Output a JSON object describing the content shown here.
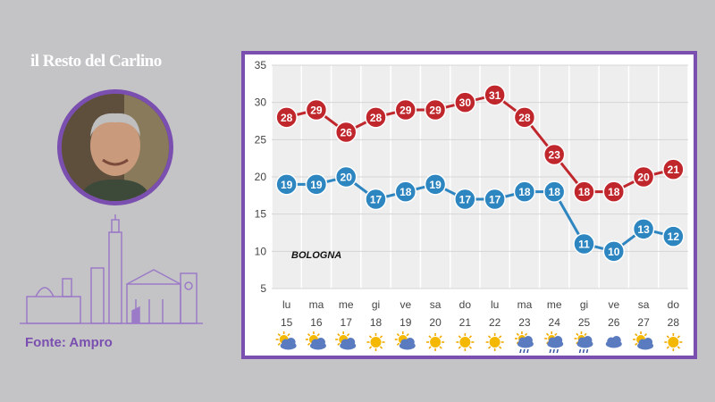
{
  "branding": {
    "logo_text": "il Resto del Carlino",
    "source_text": "Fonte: Ampro"
  },
  "colors": {
    "accent": "#7a4fb0",
    "max_series": "#c0272d",
    "min_series": "#2e86c1"
  },
  "chart_data": {
    "type": "line",
    "annotation": "BOLOGNA",
    "ylim": [
      5,
      35
    ],
    "yticks": [
      5,
      10,
      15,
      20,
      25,
      30,
      35
    ],
    "grid": true,
    "days": [
      "lu",
      "ma",
      "me",
      "gi",
      "ve",
      "sa",
      "do",
      "lu",
      "ma",
      "me",
      "gi",
      "ve",
      "sa",
      "do"
    ],
    "dates": [
      "15",
      "16",
      "17",
      "18",
      "19",
      "20",
      "21",
      "22",
      "23",
      "24",
      "25",
      "26",
      "27",
      "28"
    ],
    "series": [
      {
        "values": [
          28,
          29,
          26,
          28,
          29,
          29,
          30,
          31,
          28,
          23,
          18,
          18,
          20,
          21
        ]
      },
      {
        "values": [
          19,
          19,
          20,
          17,
          18,
          19,
          17,
          17,
          18,
          18,
          11,
          10,
          13,
          12
        ]
      }
    ],
    "weather_icons": [
      "sun-cloud-icon",
      "sun-cloud-icon",
      "sun-cloud-icon",
      "sun-icon",
      "sun-cloud-icon",
      "sun-icon",
      "sun-icon",
      "sun-icon",
      "rain-icon",
      "rain-icon",
      "rain-icon",
      "cloud-icon",
      "sun-cloud-icon",
      "sun-icon"
    ]
  }
}
